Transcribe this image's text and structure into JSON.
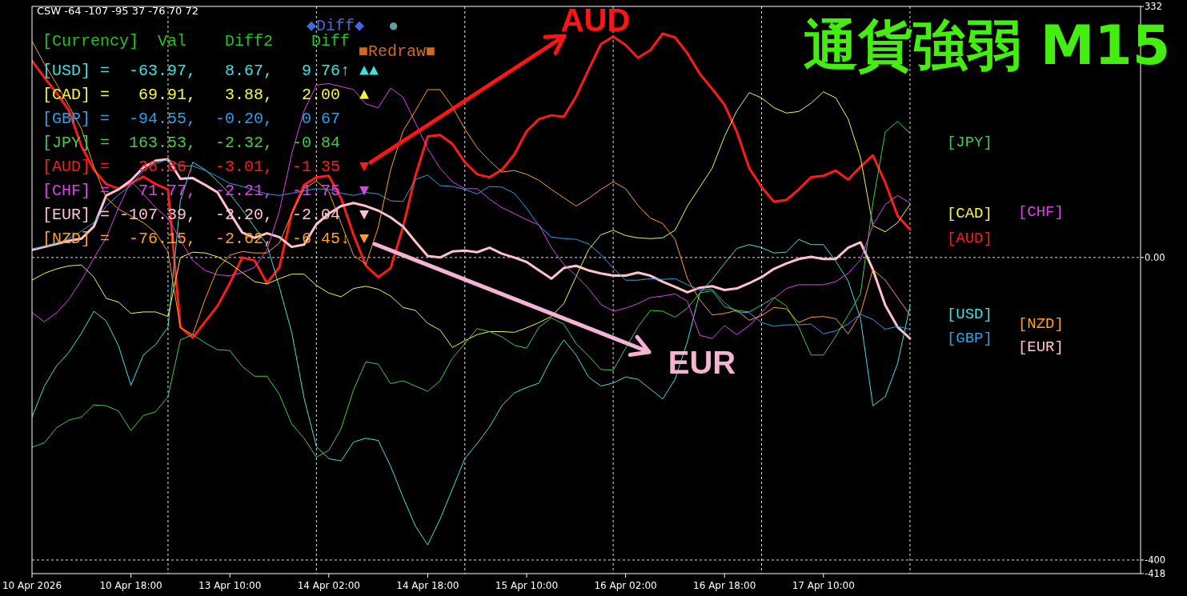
{
  "chart_data": {
    "type": "line",
    "title": "通貨強弱 M15",
    "annotations": [
      "CSW -64 -107 -95 37 -76 70 72",
      "◆Diff◆",
      "●",
      "■Redraw■",
      "[Currency]  Val    Diff2    Diff",
      "[USD] =  -63.97,   8.67,   9.76↑ ▲▲",
      "[CAD] =   69.91,   3.88,   2.00  ▲",
      "[GBP] =  -94.55,  -0.20,   0.67",
      "[JPY] =  163.53,  -2.32,  -0.84",
      "[AUD] =   36.86,  -3.01,  -1.35  ▼",
      "[CHF] =   71.77,  -2.21,  -1.75  ▼",
      "[EUR] = -107.39,  -2.20,  -2.04  ▼",
      "[NZD] =  -76.15,  -2.62,  -6.45↓ ▼",
      "AUD",
      "EUR"
    ],
    "categories": [
      "10 Apr 2026",
      null,
      null,
      null,
      null,
      null,
      null,
      null,
      "10 Apr 18:00",
      null,
      null,
      null,
      null,
      null,
      null,
      null,
      "13 Apr 10:00",
      null,
      null,
      null,
      null,
      null,
      null,
      null,
      "14 Apr 02:00",
      null,
      null,
      null,
      null,
      null,
      null,
      null,
      "14 Apr 18:00",
      null,
      null,
      null,
      null,
      null,
      null,
      null,
      "15 Apr 10:00",
      null,
      null,
      null,
      null,
      null,
      null,
      null,
      "16 Apr 02:00",
      null,
      null,
      null,
      null,
      null,
      null,
      null,
      "16 Apr 18:00",
      null,
      null,
      null,
      null,
      null,
      null,
      null,
      "17 Apr 10:00",
      null,
      null,
      null,
      null,
      null,
      null,
      null
    ],
    "ylim": [
      -418,
      332
    ],
    "yticks": [
      332,
      {
        "value": 0,
        "label": "0.00"
      },
      -400,
      -418
    ],
    "ref_lines": [
      {
        "axis": "y",
        "value": 0,
        "color": "#e0e0e0",
        "line_style": "dashed"
      },
      {
        "axis": "y",
        "value": -400,
        "color": "#e0e0e0",
        "line_style": "dashed"
      }
    ],
    "grid": "x",
    "legend": "right",
    "series": [
      {
        "name": "[USD]",
        "color": "#3fe0e0",
        "values": [
          -211,
          -170,
          -143,
          -125,
          -100,
          -71,
          -84,
          -117,
          -169,
          -129,
          -115,
          -92,
          75,
          126,
          116,
          101,
          84,
          63,
          40,
          17,
          -39,
          -99,
          -186,
          -250,
          -266,
          -269,
          -244,
          -239,
          -242,
          -276,
          -317,
          -355,
          -380,
          -346,
          -306,
          -266,
          -246,
          -224,
          -196,
          -179,
          -172,
          -166,
          -134,
          -109,
          -129,
          -158,
          -170,
          -166,
          -158,
          -161,
          -174,
          -187,
          -161,
          -111,
          -47,
          -29,
          -8,
          12,
          17,
          13,
          6,
          7,
          24,
          17,
          17,
          -5,
          -31,
          -81,
          -196,
          -184,
          -140,
          -64
        ]
      },
      {
        "name": "[CAD]",
        "color": "#f5f542",
        "values": [
          -30,
          -21,
          -15,
          -11,
          -10,
          -26,
          -54,
          -59,
          -74,
          -72,
          -72,
          -78,
          0,
          7,
          6,
          1,
          -8,
          -20,
          -32,
          -35,
          -28,
          -22,
          -22,
          -37,
          -47,
          -52,
          -41,
          -38,
          -42,
          -51,
          -66,
          -70,
          -87,
          -96,
          -119,
          -110,
          -102,
          -98,
          -98,
          -99,
          -93,
          -86,
          -78,
          -61,
          -25,
          10,
          30,
          36,
          29,
          26,
          25,
          26,
          36,
          68,
          93,
          118,
          160,
          194,
          218,
          211,
          198,
          191,
          193,
          204,
          219,
          211,
          183,
          132,
          42,
          34,
          46,
          70
        ]
      },
      {
        "name": "[GBP]",
        "color": "#2ea0e8",
        "values": [
          11,
          15,
          19,
          25,
          35,
          46,
          68,
          83,
          95,
          115,
          124,
          130,
          121,
          121,
          115,
          107,
          98,
          94,
          89,
          84,
          82,
          85,
          88,
          91,
          90,
          85,
          82,
          86,
          84,
          75,
          74,
          103,
          109,
          95,
          94,
          90,
          84,
          94,
          93,
          85,
          65,
          42,
          27,
          25,
          24,
          18,
          4,
          -14,
          -30,
          -30,
          -28,
          -29,
          -28,
          -36,
          -43,
          -42,
          -60,
          -72,
          -73,
          -86,
          -91,
          -89,
          -89,
          -88,
          -101,
          -97,
          -88,
          -75,
          -82,
          -95,
          -91,
          -95
        ]
      },
      {
        "name": "[JPY]",
        "color": "#44cc44",
        "values": [
          -251,
          -245,
          -225,
          -215,
          -211,
          -195,
          -196,
          -203,
          -229,
          -209,
          -204,
          -184,
          -109,
          -102,
          -113,
          -122,
          -123,
          -144,
          -157,
          -157,
          -181,
          -220,
          -239,
          -264,
          -255,
          -226,
          -175,
          -138,
          -141,
          -167,
          -163,
          -170,
          -177,
          -163,
          -133,
          -114,
          -94,
          -98,
          -105,
          -116,
          -120,
          -92,
          -80,
          -88,
          -114,
          -130,
          -148,
          -149,
          -120,
          -92,
          -70,
          -71,
          -79,
          -67,
          -47,
          -44,
          -65,
          -70,
          -72,
          -63,
          -53,
          -64,
          -92,
          -129,
          -129,
          -104,
          -76,
          -48,
          72,
          166,
          180,
          164
        ]
      },
      {
        "name": "[AUD]",
        "color": "#ff1a1a",
        "values": [
          260,
          238,
          217,
          194,
          147,
          116,
          97,
          91,
          98,
          107,
          97,
          90,
          -92,
          -106,
          -85,
          -64,
          -34,
          0,
          -4,
          -34,
          -13,
          58,
          96,
          106,
          108,
          78,
          30,
          -11,
          -26,
          -14,
          40,
          108,
          160,
          162,
          150,
          126,
          110,
          106,
          116,
          136,
          167,
          183,
          188,
          186,
          213,
          248,
          282,
          292,
          281,
          264,
          274,
          296,
          291,
          270,
          243,
          223,
          202,
          166,
          118,
          93,
          74,
          76,
          90,
          106,
          108,
          115,
          103,
          120,
          135,
          99,
          55,
          37
        ]
      },
      {
        "name": "[CHF]",
        "color": "#e040f0",
        "values": [
          -73,
          -85,
          -73,
          -55,
          -30,
          -1,
          26,
          66,
          101,
          84,
          66,
          52,
          23,
          -4,
          -17,
          -23,
          -24,
          -20,
          -13,
          10,
          61,
          137,
          194,
          228,
          230,
          226,
          222,
          203,
          198,
          224,
          212,
          178,
          144,
          118,
          100,
          91,
          91,
          77,
          66,
          58,
          50,
          43,
          13,
          -9,
          -24,
          -41,
          -62,
          -71,
          -67,
          -61,
          -53,
          -51,
          -48,
          -58,
          -103,
          -107,
          -90,
          -102,
          -90,
          -73,
          -54,
          -41,
          -36,
          -36,
          -36,
          -32,
          -21,
          -3,
          43,
          70,
          82,
          72
        ]
      },
      {
        "name": "[EUR]",
        "color": "#ffc0d0",
        "values": [
          10,
          14,
          18,
          22,
          25,
          41,
          82,
          90,
          102,
          119,
          128,
          130,
          104,
          105,
          96,
          86,
          59,
          33,
          26,
          32,
          27,
          14,
          17,
          44,
          58,
          68,
          72,
          68,
          62,
          53,
          41,
          21,
          2,
          0,
          8,
          9,
          7,
          13,
          5,
          0,
          -6,
          -17,
          -28,
          -14,
          -11,
          -17,
          -21,
          -24,
          -24,
          -20,
          -24,
          -32,
          -39,
          -46,
          -40,
          -38,
          -43,
          -41,
          -34,
          -26,
          -15,
          -8,
          -2,
          1,
          -2,
          -2,
          13,
          20,
          -16,
          -63,
          -92,
          -107
        ]
      },
      {
        "name": "[NZD]",
        "color": "#ffa020",
        "values": [
          286,
          256,
          229,
          200,
          170,
          120,
          79,
          64,
          55,
          46,
          33,
          7,
          -93,
          -102,
          -55,
          -15,
          3,
          8,
          6,
          6,
          19,
          58,
          91,
          101,
          87,
          45,
          3,
          -9,
          40,
          116,
          167,
          194,
          222,
          222,
          199,
          170,
          145,
          128,
          113,
          115,
          110,
          102,
          90,
          79,
          68,
          78,
          90,
          100,
          91,
          69,
          52,
          45,
          24,
          -28,
          -56,
          -76,
          -74,
          -70,
          -83,
          -77,
          -66,
          -68,
          -86,
          -79,
          -78,
          -81,
          -101,
          -74,
          -16,
          -30,
          -53,
          -76
        ]
      }
    ]
  }
}
